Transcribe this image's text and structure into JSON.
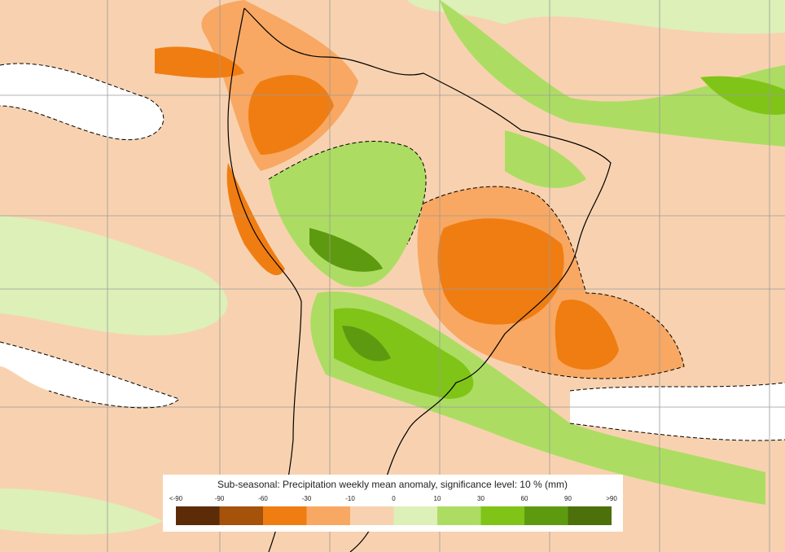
{
  "legend": {
    "title": "Sub-seasonal: Precipitation weekly mean anomaly, significance level: 10 % (mm)",
    "labels": [
      "<-90",
      "-90",
      "-60",
      "-30",
      "-10",
      "0",
      "10",
      "30",
      "60",
      "90",
      ">90"
    ],
    "colors": [
      "#5c2c08",
      "#a5520a",
      "#f07d12",
      "#f8a862",
      "#f8d2b0",
      "#dcf0b8",
      "#acdd62",
      "#80c418",
      "#5e9a10",
      "#4c700a"
    ]
  }
}
